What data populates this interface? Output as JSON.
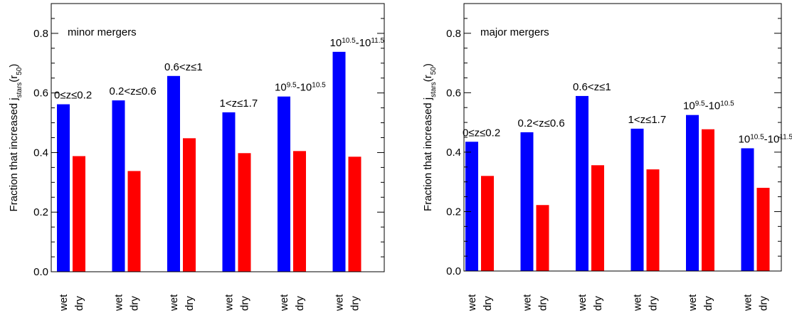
{
  "chart_data": [
    {
      "type": "bar",
      "annotation": "minor mergers",
      "ylabel": [
        {
          "text": "Fraction that increased j"
        },
        {
          "sub": "stars"
        },
        {
          "text": "(r"
        },
        {
          "sub": "50"
        },
        {
          "text": ")"
        }
      ],
      "group_labels": [
        "0≤z≤0.2",
        "0.2<z≤0.6",
        "0.6<z≤1",
        "1<z≤1.7",
        [
          {
            "text": "10"
          },
          {
            "sup": "9.5"
          },
          {
            "text": "-10"
          },
          {
            "sup": "10.5"
          }
        ],
        [
          {
            "text": "10"
          },
          {
            "sup": "10.5"
          },
          {
            "text": "-10"
          },
          {
            "sup": "11.5"
          }
        ]
      ],
      "series": [
        {
          "name": "wet",
          "color": "#0000ff",
          "values": [
            0.562,
            0.575,
            0.657,
            0.535,
            0.588,
            0.738
          ]
        },
        {
          "name": "dry",
          "color": "#ff0000",
          "values": [
            0.388,
            0.338,
            0.448,
            0.398,
            0.405,
            0.386
          ]
        }
      ],
      "ylim": [
        0,
        0.9
      ],
      "yticks": [
        {
          "value": 0,
          "label": "0.0"
        },
        0.2,
        0.4,
        0.6,
        0.8
      ],
      "minor_yticks": [
        0.05,
        0.1,
        0.15,
        0.25,
        0.3,
        0.35,
        0.45,
        0.5,
        0.55,
        0.65,
        0.7,
        0.75,
        0.85
      ]
    },
    {
      "type": "bar",
      "annotation": "major mergers",
      "ylabel": [
        {
          "text": "Fraction that increased j"
        },
        {
          "sub": "stars"
        },
        {
          "text": "(r"
        },
        {
          "sub": "50"
        },
        {
          "text": ")"
        }
      ],
      "group_labels": [
        "0≤z≤0.2",
        "0.2<z≤0.6",
        "0.6<z≤1",
        "1<z≤1.7",
        [
          {
            "text": "10"
          },
          {
            "sup": "9.5"
          },
          {
            "text": "-10"
          },
          {
            "sup": "10.5"
          }
        ],
        [
          {
            "text": "10"
          },
          {
            "sup": "10.5"
          },
          {
            "text": "-10"
          },
          {
            "sup": "11.5"
          }
        ]
      ],
      "series": [
        {
          "name": "wet",
          "color": "#0000ff",
          "values": [
            0.435,
            0.467,
            0.589,
            0.479,
            0.525,
            0.413
          ]
        },
        {
          "name": "dry",
          "color": "#ff0000",
          "values": [
            0.32,
            0.222,
            0.356,
            0.342,
            0.477,
            0.28
          ]
        }
      ],
      "ylim": [
        0,
        0.9
      ],
      "yticks": [
        {
          "value": 0,
          "label": "0.0"
        },
        0.2,
        0.4,
        0.6,
        0.8
      ],
      "minor_yticks": [
        0.05,
        0.1,
        0.15,
        0.25,
        0.3,
        0.35,
        0.45,
        0.5,
        0.55,
        0.65,
        0.7,
        0.75,
        0.85
      ]
    }
  ]
}
